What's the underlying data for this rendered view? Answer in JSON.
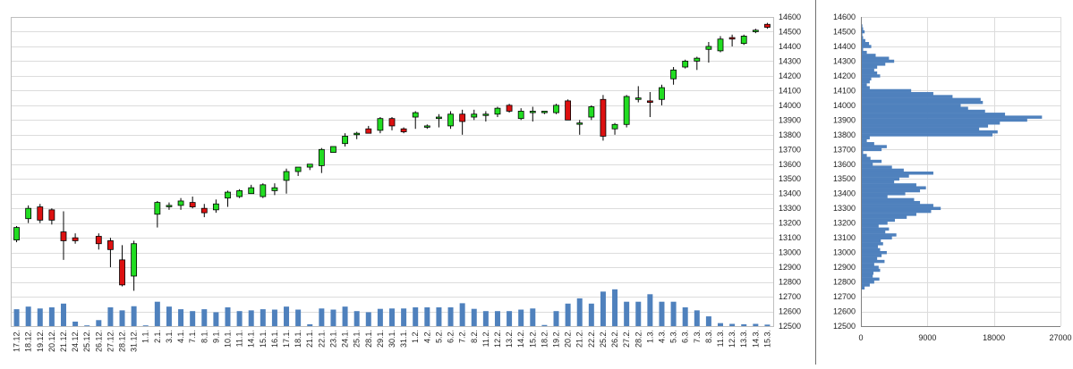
{
  "chart_data": [
    {
      "type": "candlestick",
      "title": "",
      "ylim": [
        12500,
        14600
      ],
      "y_ticks": [
        12500,
        12600,
        12700,
        12800,
        12900,
        13000,
        13100,
        13200,
        13300,
        13400,
        13500,
        13600,
        13700,
        13800,
        13900,
        14000,
        14100,
        14200,
        14300,
        14400,
        14500,
        14600
      ],
      "grid": true,
      "colors": {
        "up": "#22dd22",
        "down": "#dd1111",
        "volume": "#4f81bd",
        "grid": "#dcdcdc"
      },
      "categories": [
        "17.12.",
        "18.12.",
        "19.12.",
        "20.12.",
        "21.12.",
        "24.12.",
        "25.12.",
        "26.12.",
        "27.12.",
        "28.12.",
        "31.12.",
        "1.1.",
        "2.1.",
        "3.1.",
        "4.1.",
        "7.1.",
        "8.1.",
        "9.1.",
        "10.1.",
        "11.1.",
        "14.1.",
        "15.1.",
        "16.1.",
        "17.1.",
        "18.1.",
        "21.1.",
        "22.1.",
        "23.1.",
        "24.1.",
        "25.1.",
        "28.1.",
        "29.1.",
        "30.1.",
        "31.1.",
        "1.2.",
        "4.2.",
        "5.2.",
        "6.2.",
        "7.2.",
        "8.2.",
        "11.2.",
        "12.2.",
        "13.2.",
        "14.2.",
        "15.2.",
        "18.2.",
        "19.2.",
        "20.2.",
        "21.2.",
        "22.2.",
        "25.2.",
        "26.2.",
        "27.2.",
        "28.2.",
        "1.3.",
        "4.3.",
        "5.3.",
        "6.3.",
        "7.3.",
        "8.3.",
        "11.3.",
        "12.3.",
        "13.3.",
        "14.3.",
        "15.3."
      ],
      "ohlc": [
        [
          13085,
          13180,
          13070,
          13170
        ],
        [
          13230,
          13320,
          13200,
          13300
        ],
        [
          13310,
          13330,
          13200,
          13220
        ],
        [
          13290,
          13300,
          13190,
          13220
        ],
        [
          13140,
          13280,
          12950,
          13080
        ],
        [
          13100,
          13130,
          13060,
          13080
        ],
        [
          null,
          null,
          null,
          null
        ],
        [
          13110,
          13130,
          13020,
          13060
        ],
        [
          13080,
          13100,
          12900,
          13020
        ],
        [
          12950,
          13050,
          12770,
          12780
        ],
        [
          12840,
          13080,
          12740,
          13060
        ],
        [
          null,
          null,
          null,
          null
        ],
        [
          13260,
          13350,
          13170,
          13340
        ],
        [
          13320,
          13340,
          13290,
          13320
        ],
        [
          13320,
          13370,
          13290,
          13350
        ],
        [
          13340,
          13380,
          13300,
          13310
        ],
        [
          13300,
          13330,
          13240,
          13270
        ],
        [
          13290,
          13360,
          13270,
          13330
        ],
        [
          13370,
          13420,
          13310,
          13410
        ],
        [
          13380,
          13430,
          13370,
          13420
        ],
        [
          13400,
          13460,
          13400,
          13440
        ],
        [
          13380,
          13470,
          13370,
          13460
        ],
        [
          13420,
          13470,
          13390,
          13440
        ],
        [
          13490,
          13570,
          13400,
          13550
        ],
        [
          13550,
          13580,
          13520,
          13580
        ],
        [
          13580,
          13600,
          13560,
          13600
        ],
        [
          13590,
          13710,
          13540,
          13700
        ],
        [
          13680,
          13720,
          13680,
          13720
        ],
        [
          13740,
          13810,
          13720,
          13790
        ],
        [
          13800,
          13820,
          13770,
          13810
        ],
        [
          13840,
          13860,
          13810,
          13810
        ],
        [
          13830,
          13920,
          13810,
          13910
        ],
        [
          13910,
          13920,
          13830,
          13860
        ],
        [
          13840,
          13850,
          13810,
          13820
        ],
        [
          13920,
          13960,
          13840,
          13950
        ],
        [
          13860,
          13870,
          13840,
          13860
        ],
        [
          13910,
          13940,
          13850,
          13920
        ],
        [
          13860,
          13960,
          13840,
          13940
        ],
        [
          13940,
          13970,
          13800,
          13890
        ],
        [
          13920,
          13970,
          13900,
          13940
        ],
        [
          13940,
          13960,
          13890,
          13940
        ],
        [
          13940,
          13990,
          13920,
          13980
        ],
        [
          14000,
          14010,
          13950,
          13960
        ],
        [
          13910,
          13980,
          13900,
          13960
        ],
        [
          13950,
          13990,
          13890,
          13960
        ],
        [
          13950,
          13960,
          13940,
          13960
        ],
        [
          13950,
          14010,
          13940,
          14000
        ],
        [
          14030,
          14040,
          13900,
          13900
        ],
        [
          13880,
          13900,
          13800,
          13880
        ],
        [
          13920,
          14000,
          13900,
          13990
        ],
        [
          14040,
          14070,
          13760,
          13790
        ],
        [
          13840,
          13880,
          13800,
          13870
        ],
        [
          13870,
          14070,
          13850,
          14060
        ],
        [
          14040,
          14130,
          14020,
          14050
        ],
        [
          14030,
          14090,
          13920,
          14020
        ],
        [
          14040,
          14140,
          14000,
          14120
        ],
        [
          14180,
          14260,
          14140,
          14240
        ],
        [
          14260,
          14310,
          14250,
          14300
        ],
        [
          14300,
          14330,
          14240,
          14320
        ],
        [
          14380,
          14430,
          14290,
          14400
        ],
        [
          14370,
          14470,
          14360,
          14450
        ],
        [
          14460,
          14480,
          14400,
          14450
        ],
        [
          14420,
          14480,
          14410,
          14470
        ],
        [
          14500,
          14520,
          14490,
          14510
        ],
        [
          14550,
          14560,
          14520,
          14530
        ]
      ],
      "volume_rel": [
        0.45,
        0.52,
        0.47,
        0.5,
        0.6,
        0.12,
        0.02,
        0.16,
        0.5,
        0.42,
        0.53,
        0.02,
        0.65,
        0.52,
        0.45,
        0.4,
        0.45,
        0.37,
        0.5,
        0.4,
        0.42,
        0.45,
        0.44,
        0.52,
        0.44,
        0.05,
        0.47,
        0.44,
        0.52,
        0.4,
        0.37,
        0.46,
        0.47,
        0.47,
        0.5,
        0.5,
        0.5,
        0.5,
        0.61,
        0.46,
        0.4,
        0.4,
        0.4,
        0.44,
        0.47,
        0.03,
        0.4,
        0.6,
        0.74,
        0.6,
        0.92,
        0.98,
        0.65,
        0.65,
        0.85,
        0.65,
        0.65,
        0.5,
        0.42,
        0.26,
        0.08,
        0.06,
        0.05,
        0.06,
        0.04
      ]
    },
    {
      "type": "horizontal-histogram",
      "title": "",
      "ylim": [
        12500,
        14600
      ],
      "y_ticks": [
        12500,
        12600,
        12700,
        12800,
        12900,
        13000,
        13100,
        13200,
        13300,
        13400,
        13500,
        13600,
        13700,
        13800,
        13900,
        14000,
        14100,
        14200,
        14300,
        14400,
        14500,
        14600
      ],
      "x_ticks": [
        0,
        9000,
        18000,
        27000
      ],
      "xlim": [
        0,
        27000
      ],
      "grid": true,
      "color": "#4f81bd",
      "profile_price": [
        12760,
        12780,
        12800,
        12820,
        12840,
        12860,
        12880,
        12900,
        12920,
        12940,
        12960,
        12980,
        13000,
        13020,
        13040,
        13060,
        13080,
        13100,
        13120,
        13140,
        13160,
        13180,
        13200,
        13220,
        13240,
        13260,
        13280,
        13300,
        13320,
        13340,
        13360,
        13380,
        13400,
        13420,
        13440,
        13460,
        13480,
        13500,
        13520,
        13540,
        13560,
        13580,
        13600,
        13620,
        13640,
        13660,
        13680,
        13700,
        13720,
        13740,
        13760,
        13780,
        13800,
        13820,
        13840,
        13860,
        13880,
        13900,
        13920,
        13940,
        13960,
        13980,
        14000,
        14020,
        14040,
        14060,
        14080,
        14100,
        14120,
        14140,
        14160,
        14180,
        14200,
        14220,
        14240,
        14260,
        14280,
        14300,
        14320,
        14340,
        14360,
        14380,
        14400,
        14420,
        14440,
        14460,
        14480,
        14500,
        14520,
        14540
      ],
      "profile_volume": [
        500,
        1200,
        1800,
        2500,
        1600,
        1700,
        2600,
        2400,
        1800,
        3200,
        2200,
        2800,
        3500,
        2600,
        2300,
        3000,
        2700,
        4200,
        4800,
        3300,
        3800,
        2400,
        3600,
        4600,
        6200,
        7500,
        9500,
        10800,
        9800,
        8000,
        7200,
        3600,
        6000,
        8000,
        8800,
        7500,
        4500,
        5200,
        6500,
        9800,
        5800,
        4200,
        1600,
        2800,
        1300,
        800,
        300,
        2800,
        3500,
        1800,
        800,
        1200,
        17800,
        18500,
        16000,
        17200,
        18800,
        22500,
        24500,
        19500,
        16800,
        14500,
        13500,
        16500,
        16200,
        12400,
        9800,
        6800,
        1200,
        800,
        1200,
        1400,
        2600,
        2200,
        1800,
        2200,
        3300,
        4500,
        3800,
        2000,
        800,
        300,
        1400,
        1100,
        600,
        300,
        200,
        500,
        300,
        200
      ]
    }
  ]
}
